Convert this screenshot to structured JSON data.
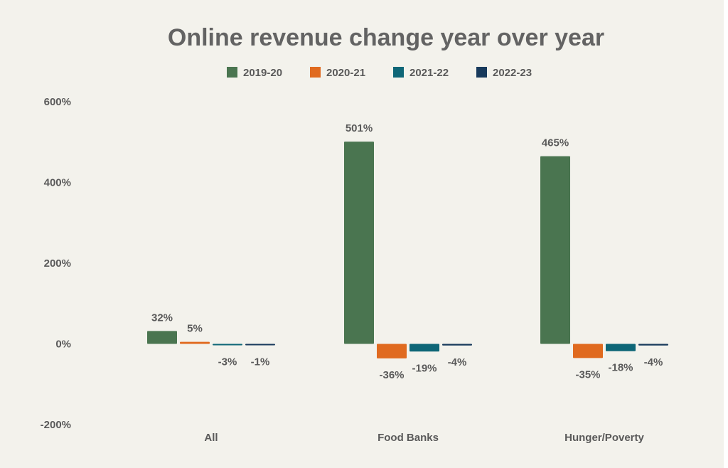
{
  "chart_data": {
    "type": "bar",
    "title": "Online revenue change year over year",
    "categories": [
      "All",
      "Food Banks",
      "Hunger/Poverty"
    ],
    "series": [
      {
        "name": "2019-20",
        "color": "#4a7550",
        "values": [
          32,
          501,
          465
        ],
        "labels": [
          "32%",
          "501%",
          "465%"
        ]
      },
      {
        "name": "2020-21",
        "color": "#e06a1f",
        "values": [
          5,
          -36,
          -35
        ],
        "labels": [
          "5%",
          "-36%",
          "-35%"
        ]
      },
      {
        "name": "2021-22",
        "color": "#0e6677",
        "values": [
          -3,
          -19,
          -18
        ],
        "labels": [
          "-3%",
          "-19%",
          "-18%"
        ]
      },
      {
        "name": "2022-23",
        "color": "#183a5c",
        "values": [
          -1,
          -4,
          -4
        ],
        "labels": [
          "-1%",
          "-4%",
          "-4%"
        ]
      }
    ],
    "yticks": [
      600,
      400,
      200,
      0,
      -200
    ],
    "ytick_labels": [
      "600%",
      "400%",
      "200%",
      "0%",
      "-200%"
    ],
    "ylim": [
      -200,
      600
    ],
    "legend_position": "top",
    "grid": false
  }
}
